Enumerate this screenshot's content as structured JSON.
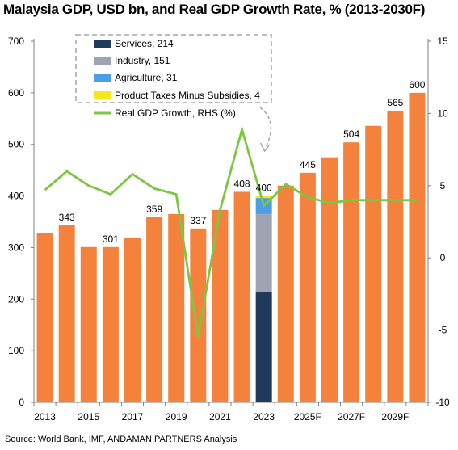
{
  "title": "Malaysia GDP, USD bn, and Real GDP Growth Rate, % (2013-2030F)",
  "source": "Source: World Bank, IMF, ANDAMAN PARTNERS Analysis",
  "colors": {
    "bar": "#f4823c",
    "services": "#1f3a5a",
    "industry": "#a0a3b4",
    "agriculture": "#4a9ee6",
    "product_taxes": "#f5e61e",
    "growth_line": "#7ec544",
    "axis": "#7f7f7f",
    "legend_border": "#a6a6a6"
  },
  "chart_data": {
    "type": "bar",
    "categories": [
      "2013",
      "2014",
      "2015",
      "2016",
      "2017",
      "2018",
      "2019",
      "2020",
      "2021",
      "2022",
      "2023",
      "2024",
      "2025F",
      "2026F",
      "2027F",
      "2028F",
      "2029F",
      "2030F"
    ],
    "x_tick_labels": [
      "2013",
      "2015",
      "2017",
      "2019",
      "2021",
      "2023",
      "2025F",
      "2027F",
      "2029F"
    ],
    "series": [
      {
        "values": [
          328,
          343,
          301,
          301,
          319,
          359,
          365,
          337,
          373,
          408,
          400,
          420,
          445,
          475,
          504,
          536,
          565,
          600
        ]
      },
      {
        "name": "Real GDP Growth, RHS (%)",
        "axis": "right",
        "type": "line",
        "values": [
          4.7,
          6.0,
          5.0,
          4.4,
          5.8,
          4.8,
          4.4,
          -5.5,
          3.3,
          8.9,
          3.6,
          5.1,
          4.2,
          3.8,
          4.0,
          4.0,
          4.0,
          4.0
        ]
      }
    ],
    "data_labels": [
      {
        "category": "2014",
        "value": "343"
      },
      {
        "category": "2016",
        "value": "301"
      },
      {
        "category": "2018",
        "value": "359"
      },
      {
        "category": "2020",
        "value": "337"
      },
      {
        "category": "2022",
        "value": "408"
      },
      {
        "category": "2023",
        "value": "400"
      },
      {
        "category": "2025F",
        "value": "445"
      },
      {
        "category": "2027F",
        "value": "504"
      },
      {
        "category": "2029F",
        "value": "565"
      },
      {
        "category": "2030F",
        "value": "600"
      }
    ],
    "breakdown_2023": {
      "category": "2023",
      "components": [
        {
          "name": "Services, 214",
          "value": 214,
          "color_key": "services"
        },
        {
          "name": "Industry, 151",
          "value": 151,
          "color_key": "industry"
        },
        {
          "name": "Agriculture, 31",
          "value": 31,
          "color_key": "agriculture"
        },
        {
          "name": "Product Taxes Minus Subsidies, 4",
          "value": 4,
          "color_key": "product_taxes"
        }
      ]
    },
    "legend": [
      {
        "label": "Services, 214",
        "kind": "box",
        "color_key": "services"
      },
      {
        "label": "Industry, 151",
        "kind": "box",
        "color_key": "industry"
      },
      {
        "label": "Agriculture, 31",
        "kind": "box",
        "color_key": "agriculture"
      },
      {
        "label": "Product Taxes Minus Subsidies, 4",
        "kind": "box",
        "color_key": "product_taxes"
      },
      {
        "label": "Real GDP Growth, RHS (%)",
        "kind": "line",
        "color_key": "growth_line"
      }
    ],
    "y_left": {
      "lim": [
        0,
        700
      ],
      "ticks": [
        0,
        100,
        200,
        300,
        400,
        500,
        600,
        700
      ]
    },
    "y_right": {
      "lim": [
        -10,
        15
      ],
      "ticks": [
        -10,
        -5,
        0,
        5,
        10,
        15
      ]
    },
    "grid": false,
    "legend_placement": "top-left, dashed box"
  }
}
